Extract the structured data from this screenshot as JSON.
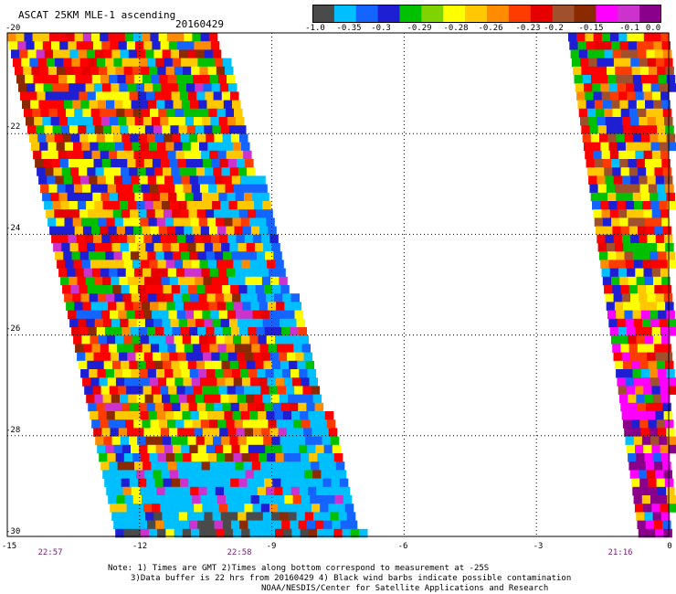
{
  "title": "ASCAT 25KM MLE-1 ascending",
  "date": "20160429",
  "colorbar": {
    "colors": [
      "#4a4a4a",
      "#00bfff",
      "#1464ff",
      "#1e1ed2",
      "#00c000",
      "#7fd400",
      "#ffff00",
      "#ffc800",
      "#ff8c00",
      "#ff3c00",
      "#e60000",
      "#a0502d",
      "#8b2a00",
      "#ff00ff",
      "#cc33cc",
      "#8b008b"
    ],
    "labels": [
      "-1.0",
      "-0.35",
      "-0.3",
      "-0.29",
      "-0.28",
      "-0.26",
      "-0.23",
      "-0.2",
      "-0.15",
      "-0.1",
      "0.0"
    ]
  },
  "map": {
    "lon_range": [
      -15,
      0
    ],
    "lat_range": [
      -30,
      -20
    ],
    "x_ticks": [
      "-15",
      "-12",
      "-9",
      "-6",
      "-3",
      "0"
    ],
    "y_ticks": [
      "-20",
      "-22",
      "-24",
      "-26",
      "-28",
      "-30"
    ],
    "grid": "dotted"
  },
  "times": [
    "22:57",
    "22:58",
    "21:16"
  ],
  "notes": {
    "line1": "Note: 1) Times are GMT 2)Times along bottom correspond to measurement at -25S",
    "line2": "3)Data buffer is 22 hrs from 20160429 4) Black wind barbs indicate possible contamination",
    "line3": "NOAA/NESDIS/Center for Satellite Applications and Research"
  }
}
